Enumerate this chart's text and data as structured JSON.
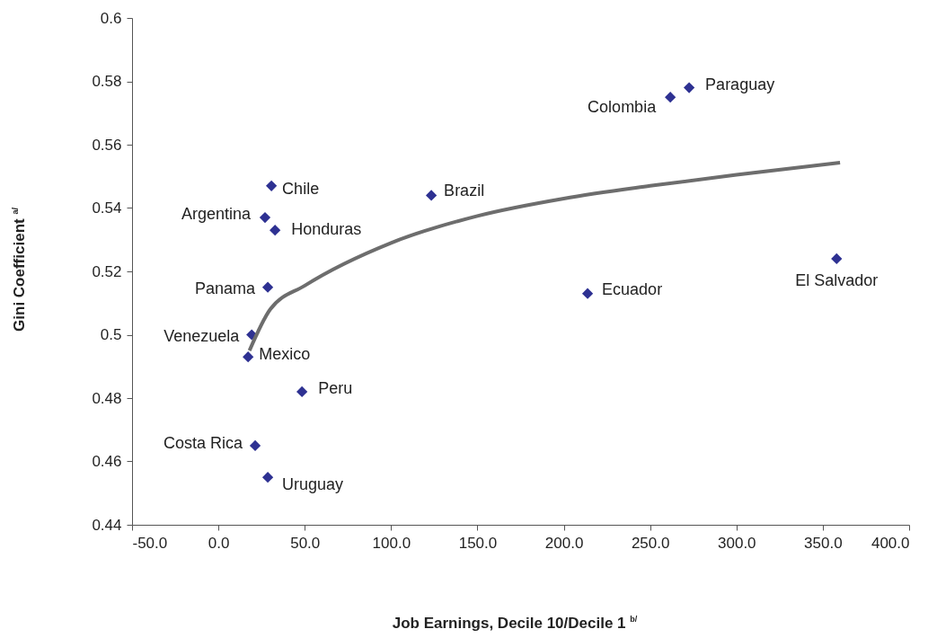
{
  "chart_data": {
    "type": "scatter",
    "xlabel": "Job Earnings, Decile 10/Decile 1 $^{b/}$",
    "ylabel": "Gini Coefficient $^{a/}$",
    "xlim": [
      -50,
      400
    ],
    "xticks": [
      {
        "value": -50,
        "label": "-50.0"
      },
      {
        "value": 0,
        "label": "0.0"
      },
      {
        "value": 50,
        "label": "50.0"
      },
      {
        "value": 100,
        "label": "100.0"
      },
      {
        "value": 150,
        "label": "150.0"
      },
      {
        "value": 200,
        "label": "200.0"
      },
      {
        "value": 250,
        "label": "250.0"
      },
      {
        "value": 300,
        "label": "300.0"
      },
      {
        "value": 350,
        "label": "350.0"
      },
      {
        "value": 400,
        "label": "400.0"
      }
    ],
    "ylim": [
      0.44,
      0.6
    ],
    "yticks": [
      0.44,
      0.46,
      0.48,
      0.5,
      0.52,
      0.54,
      0.56,
      0.58,
      0.6
    ],
    "grid": false,
    "marker": "diamond",
    "series": [
      {
        "color": "#2e3192",
        "x": [
          272.6,
          261.7,
          30.7,
          123.3,
          27,
          32.8,
          28.6,
          213.8,
          358,
          19.3,
          17.2,
          48.4,
          21.3,
          28.6
        ],
        "values": [
          0.578,
          0.575,
          0.547,
          0.544,
          0.537,
          0.533,
          0.515,
          0.513,
          0.524,
          0.5,
          0.493,
          0.482,
          0.465,
          0.455
        ]
      },
      {
        "type": "line",
        "color": "#6d6d6d",
        "marker": "none",
        "line_style": "solid",
        "x": [
          18,
          30,
          50,
          100,
          150,
          200,
          250,
          300,
          360
        ],
        "values": [
          0.495,
          0.508,
          0.5155,
          0.529,
          0.5375,
          0.543,
          0.547,
          0.5505,
          0.5543
        ]
      }
    ],
    "annotations": [
      {
        "text": "Paraguay",
        "x": 272.6,
        "y": 0.578
      },
      {
        "text": "Colombia",
        "x": 261.7,
        "y": 0.575
      },
      {
        "text": "Chile",
        "x": 30.7,
        "y": 0.547
      },
      {
        "text": "Brazil",
        "x": 123.3,
        "y": 0.544
      },
      {
        "text": "Argentina",
        "x": 27,
        "y": 0.537
      },
      {
        "text": "Honduras",
        "x": 32.8,
        "y": 0.533
      },
      {
        "text": "Panama",
        "x": 28.6,
        "y": 0.515
      },
      {
        "text": "Ecuador",
        "x": 213.8,
        "y": 0.513
      },
      {
        "text": "El Salvador",
        "x": 358,
        "y": 0.524
      },
      {
        "text": "Venezuela",
        "x": 19.3,
        "y": 0.5
      },
      {
        "text": "Mexico",
        "x": 17.2,
        "y": 0.493
      },
      {
        "text": "Peru",
        "x": 48.4,
        "y": 0.482
      },
      {
        "text": "Costa Rica",
        "x": 21.3,
        "y": 0.465
      },
      {
        "text": "Uruguay",
        "x": 28.6,
        "y": 0.455
      }
    ]
  }
}
